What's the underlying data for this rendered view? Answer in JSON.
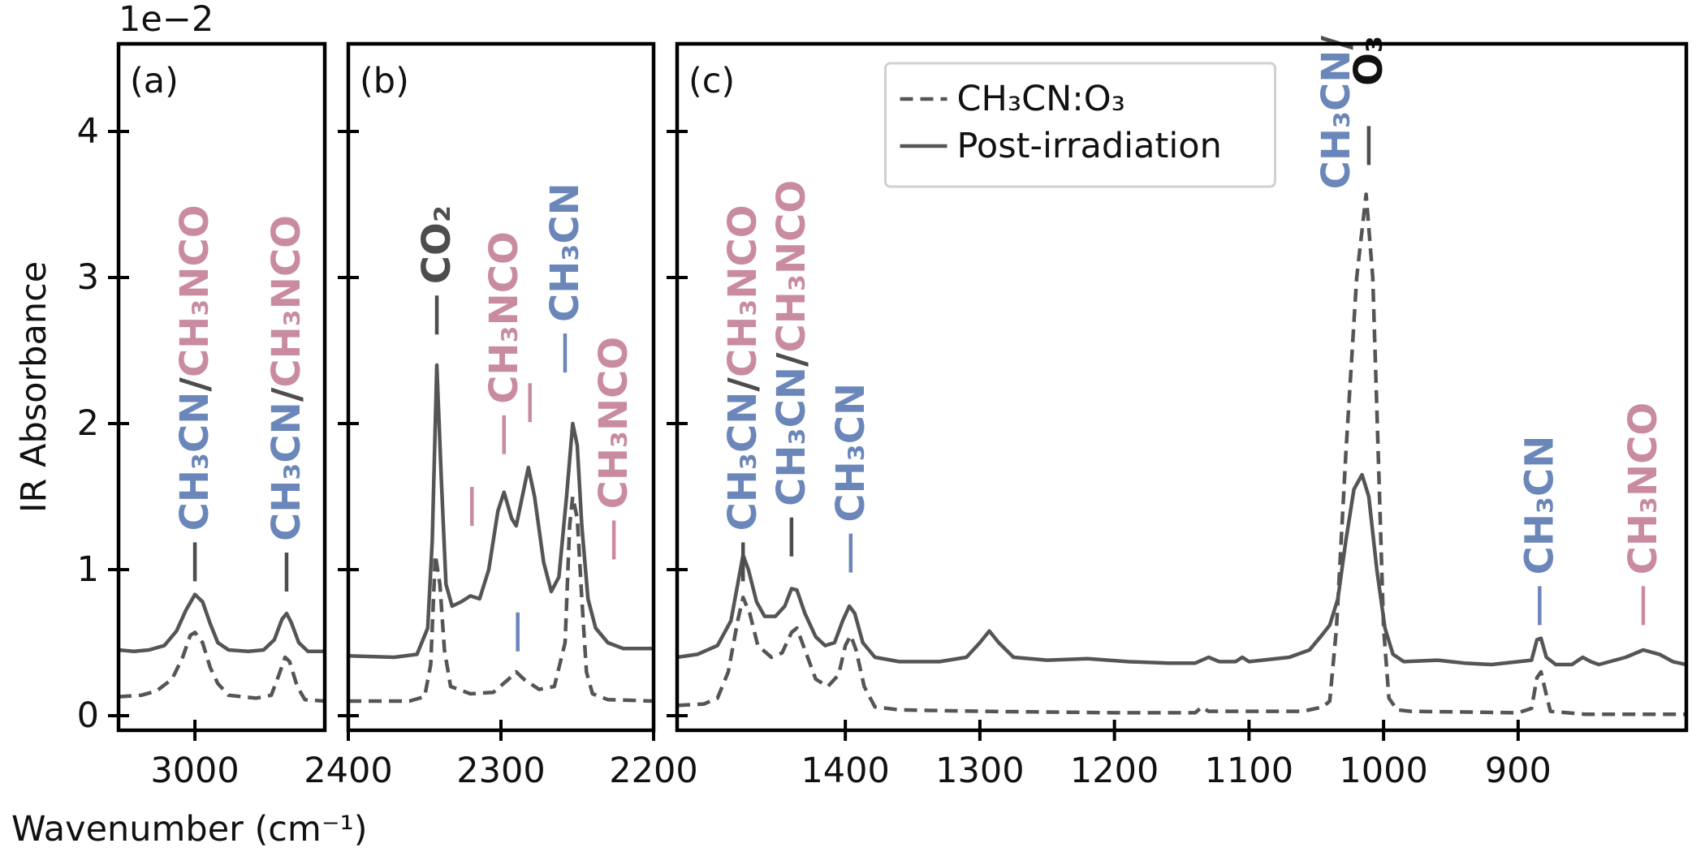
{
  "chart_data": [
    {
      "type": "line",
      "panel_label": "(a)",
      "ylabel": "IR Absorbance",
      "xlabel": "Wavenumber (cm⁻¹)",
      "y_offset_label": "1e−2",
      "xlim": [
        3050,
        2915
      ],
      "xticks": [
        3000
      ],
      "ylim": [
        -0.1,
        4.6
      ],
      "yticks": [
        0,
        1,
        2,
        3,
        4
      ],
      "show_ytick_labels": true,
      "series": [
        {
          "color": "#555555",
          "linestyle": "dashed",
          "x": [
            3050,
            3035,
            3025,
            3015,
            3008,
            3003,
            3000,
            2995,
            2990,
            2985,
            2978,
            2960,
            2950,
            2945,
            2941,
            2938,
            2933,
            2928,
            2915
          ],
          "values": [
            0.13,
            0.14,
            0.17,
            0.25,
            0.4,
            0.55,
            0.57,
            0.5,
            0.33,
            0.22,
            0.14,
            0.12,
            0.14,
            0.28,
            0.4,
            0.37,
            0.2,
            0.11,
            0.1
          ]
        },
        {
          "color": "#555555",
          "linestyle": "solid",
          "x": [
            3050,
            3040,
            3030,
            3020,
            3012,
            3006,
            3000,
            2995,
            2990,
            2985,
            2978,
            2965,
            2955,
            2948,
            2943,
            2940,
            2937,
            2932,
            2926,
            2915
          ],
          "values": [
            0.45,
            0.44,
            0.45,
            0.48,
            0.58,
            0.72,
            0.83,
            0.78,
            0.63,
            0.5,
            0.45,
            0.44,
            0.45,
            0.52,
            0.66,
            0.7,
            0.64,
            0.5,
            0.44,
            0.44
          ]
        }
      ],
      "annotations": [
        {
          "x": 3000,
          "y": 0.92,
          "color": "#4d4d4d",
          "lines": [
            [
              {
                "text": "CH₃CN",
                "color": "#6b86b9"
              },
              {
                "text": "/",
                "color": "#4d4d4d"
              },
              {
                "text": "CH₃NCO",
                "color": "#c98ba1"
              }
            ]
          ]
        },
        {
          "x": 2940,
          "y": 0.85,
          "color": "#4d4d4d",
          "lines": [
            [
              {
                "text": "CH₃CN",
                "color": "#6b86b9"
              },
              {
                "text": "/",
                "color": "#4d4d4d"
              },
              {
                "text": "CH₃NCO",
                "color": "#c98ba1"
              }
            ]
          ]
        }
      ]
    },
    {
      "type": "line",
      "panel_label": "(b)",
      "xlim": [
        2400,
        2200
      ],
      "xticks": [
        2400,
        2300,
        2200
      ],
      "ylim": [
        -0.1,
        4.6
      ],
      "yticks": [
        0,
        1,
        2,
        3,
        4
      ],
      "show_ytick_labels": false,
      "series": [
        {
          "color": "#555555",
          "linestyle": "dashed",
          "x": [
            2400,
            2360,
            2350,
            2346,
            2343,
            2340,
            2337,
            2333,
            2320,
            2305,
            2295,
            2290,
            2285,
            2275,
            2265,
            2258,
            2255,
            2253,
            2250,
            2247,
            2244,
            2240,
            2230,
            2200
          ],
          "values": [
            0.1,
            0.1,
            0.13,
            0.35,
            1.1,
            0.9,
            0.45,
            0.2,
            0.15,
            0.16,
            0.25,
            0.3,
            0.25,
            0.18,
            0.2,
            0.5,
            1.3,
            1.5,
            1.35,
            0.8,
            0.3,
            0.15,
            0.11,
            0.1
          ]
        },
        {
          "color": "#555555",
          "linestyle": "solid",
          "x": [
            2400,
            2370,
            2355,
            2348,
            2345,
            2342,
            2339,
            2336,
            2332,
            2326,
            2320,
            2314,
            2308,
            2302,
            2298,
            2293,
            2290,
            2286,
            2282,
            2278,
            2272,
            2267,
            2262,
            2257,
            2253,
            2250,
            2247,
            2243,
            2238,
            2230,
            2220,
            2210,
            2200
          ],
          "values": [
            0.41,
            0.4,
            0.42,
            0.6,
            1.2,
            2.4,
            1.6,
            0.9,
            0.75,
            0.78,
            0.82,
            0.8,
            1.0,
            1.4,
            1.53,
            1.35,
            1.3,
            1.5,
            1.7,
            1.5,
            1.05,
            0.85,
            0.95,
            1.5,
            2.0,
            1.85,
            1.3,
            0.8,
            0.6,
            0.5,
            0.46,
            0.46,
            0.46
          ]
        }
      ],
      "annotations": [
        {
          "x": 2342,
          "y": 2.61,
          "color": "#4d4d4d",
          "lines": [
            [
              {
                "text": "CO₂",
                "color": "#4d4d4d"
              }
            ]
          ]
        },
        {
          "x": 2319,
          "y": 1.3,
          "color": "#c98ba1"
        },
        {
          "x": 2298,
          "y": 1.79,
          "color": "#c98ba1",
          "lines": [
            [
              {
                "text": "CH₃NCO",
                "color": "#c98ba1"
              }
            ]
          ]
        },
        {
          "x": 2281,
          "y": 2.01,
          "color": "#c98ba1"
        },
        {
          "x": 2289,
          "y": 0.44,
          "color": "#6b86b9"
        },
        {
          "x": 2258,
          "y": 2.35,
          "color": "#6b86b9",
          "lines": [
            [
              {
                "text": "CH₃CN",
                "color": "#6b86b9"
              }
            ]
          ]
        },
        {
          "x": 2226,
          "y": 1.07,
          "color": "#c98ba1",
          "lines": [
            [
              {
                "text": "CH₃NCO",
                "color": "#c98ba1"
              }
            ]
          ]
        }
      ]
    },
    {
      "type": "line",
      "panel_label": "(c)",
      "legend": "upper center",
      "xlim": [
        1525,
        775
      ],
      "xticks": [
        1400,
        1300,
        1200,
        1100,
        1000,
        900
      ],
      "ylim": [
        -0.1,
        4.6
      ],
      "yticks": [
        0,
        1,
        2,
        3,
        4
      ],
      "show_ytick_labels": false,
      "series": [
        {
          "name": "CH₃CN:O₃",
          "color": "#555555",
          "linestyle": "dashed",
          "x": [
            1525,
            1505,
            1495,
            1487,
            1480,
            1476,
            1471,
            1465,
            1455,
            1447,
            1440,
            1436,
            1430,
            1422,
            1413,
            1405,
            1400,
            1396,
            1392,
            1386,
            1378,
            1360,
            1300,
            1200,
            1140,
            1135,
            1130,
            1060,
            1045,
            1040,
            1035,
            1028,
            1020,
            1013,
            1008,
            1004,
            1000,
            996,
            990,
            980,
            900,
            890,
            886,
            883,
            880,
            876,
            850,
            775
          ],
          "values": [
            0.07,
            0.08,
            0.12,
            0.3,
            0.65,
            0.81,
            0.7,
            0.48,
            0.4,
            0.43,
            0.57,
            0.6,
            0.45,
            0.25,
            0.2,
            0.28,
            0.48,
            0.55,
            0.45,
            0.2,
            0.06,
            0.04,
            0.03,
            0.02,
            0.02,
            0.06,
            0.03,
            0.03,
            0.06,
            0.1,
            0.6,
            1.8,
            3.0,
            3.57,
            3.0,
            1.8,
            0.6,
            0.12,
            0.04,
            0.03,
            0.02,
            0.05,
            0.26,
            0.3,
            0.18,
            0.03,
            0.01,
            0.01
          ]
        },
        {
          "name": "Post-irradiation",
          "color": "#555555",
          "linestyle": "solid",
          "x": [
            1525,
            1510,
            1495,
            1485,
            1480,
            1476,
            1472,
            1466,
            1460,
            1452,
            1445,
            1440,
            1436,
            1430,
            1422,
            1415,
            1408,
            1402,
            1397,
            1393,
            1387,
            1378,
            1360,
            1330,
            1310,
            1300,
            1293,
            1286,
            1275,
            1250,
            1220,
            1190,
            1160,
            1140,
            1130,
            1122,
            1110,
            1105,
            1100,
            1070,
            1055,
            1046,
            1040,
            1034,
            1028,
            1022,
            1016,
            1011,
            1005,
            999,
            993,
            985,
            960,
            940,
            920,
            890,
            886,
            883,
            879,
            872,
            860,
            852,
            846,
            840,
            820,
            807,
            795,
            785,
            775
          ],
          "values": [
            0.4,
            0.42,
            0.48,
            0.65,
            0.9,
            1.1,
            1.0,
            0.78,
            0.68,
            0.68,
            0.75,
            0.87,
            0.86,
            0.7,
            0.54,
            0.48,
            0.5,
            0.65,
            0.75,
            0.7,
            0.5,
            0.4,
            0.37,
            0.37,
            0.4,
            0.5,
            0.58,
            0.5,
            0.4,
            0.38,
            0.39,
            0.37,
            0.36,
            0.36,
            0.4,
            0.37,
            0.37,
            0.4,
            0.37,
            0.4,
            0.45,
            0.55,
            0.62,
            0.8,
            1.2,
            1.55,
            1.65,
            1.5,
            1.0,
            0.6,
            0.42,
            0.37,
            0.38,
            0.36,
            0.35,
            0.38,
            0.52,
            0.53,
            0.4,
            0.35,
            0.35,
            0.4,
            0.37,
            0.35,
            0.4,
            0.45,
            0.42,
            0.37,
            0.35
          ]
        }
      ],
      "annotations": [
        {
          "x": 1476,
          "y": 0.92,
          "color": "#4d4d4d",
          "lines": [
            [
              {
                "text": "CH₃CN",
                "color": "#6b86b9"
              },
              {
                "text": "/",
                "color": "#4d4d4d"
              },
              {
                "text": "CH₃NCO",
                "color": "#c98ba1"
              }
            ]
          ]
        },
        {
          "x": 1440,
          "y": 1.09,
          "color": "#4d4d4d",
          "lines": [
            [
              {
                "text": "CH₃CN",
                "color": "#6b86b9"
              },
              {
                "text": "/",
                "color": "#4d4d4d"
              },
              {
                "text": "CH₃NCO",
                "color": "#c98ba1"
              }
            ]
          ]
        },
        {
          "x": 1396,
          "y": 0.98,
          "color": "#6b86b9",
          "lines": [
            [
              {
                "text": "CH₃CN",
                "color": "#6b86b9"
              }
            ]
          ]
        },
        {
          "x": 1011,
          "y": 3.77,
          "color": "#4d4d4d",
          "align": "top",
          "lines": [
            [
              {
                "text": "CH₃CN",
                "color": "#6b86b9"
              },
              {
                "text": "/",
                "color": "#4d4d4d"
              }
            ],
            [
              {
                "text": "O₃",
                "color": "#111111"
              }
            ]
          ]
        },
        {
          "x": 884,
          "y": 0.62,
          "color": "#6b86b9",
          "lines": [
            [
              {
                "text": "CH₃CN",
                "color": "#6b86b9"
              }
            ]
          ]
        },
        {
          "x": 807,
          "y": 0.62,
          "color": "#c98ba1",
          "lines": [
            [
              {
                "text": "CH₃NCO",
                "color": "#c98ba1"
              }
            ]
          ]
        }
      ]
    }
  ]
}
